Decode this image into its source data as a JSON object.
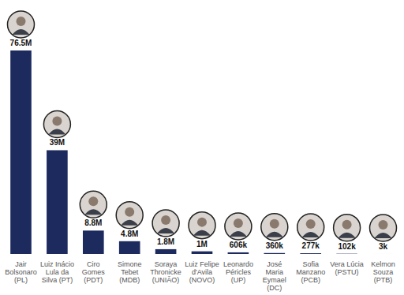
{
  "chart_data": {
    "type": "bar",
    "categories": [
      "Jair\nBolsonaro\n(PL)",
      "Luiz Inácio\nLula da\nSilva (PT)",
      "Ciro\nGomes\n(PDT)",
      "Simone\nTebet\n(MDB)",
      "Soraya\nThronicke\n(UNIÃO)",
      "Luiz Felipe\nd'Avila\n(NOVO)",
      "Leonardo\nPéricles\n(UP)",
      "José\nMaria\nEymael\n(DC)",
      "Sofia\nManzano\n(PCB)",
      "Vera Lúcia\n(PSTU)",
      "Kelmon\nSouza\n(PTB)"
    ],
    "values": [
      76500000,
      39000000,
      8800000,
      4800000,
      1800000,
      1000000,
      606000,
      360000,
      277000,
      102000,
      3000
    ],
    "value_labels": [
      "76.5M",
      "39M",
      "8.8M",
      "4.8M",
      "1.8M",
      "1M",
      "606k",
      "360k",
      "277k",
      "102k",
      "3k"
    ],
    "color": "#1c2a5e",
    "ylim": [
      0,
      76500000
    ],
    "data_labels": true,
    "tick_labels": "x",
    "grid": false
  }
}
